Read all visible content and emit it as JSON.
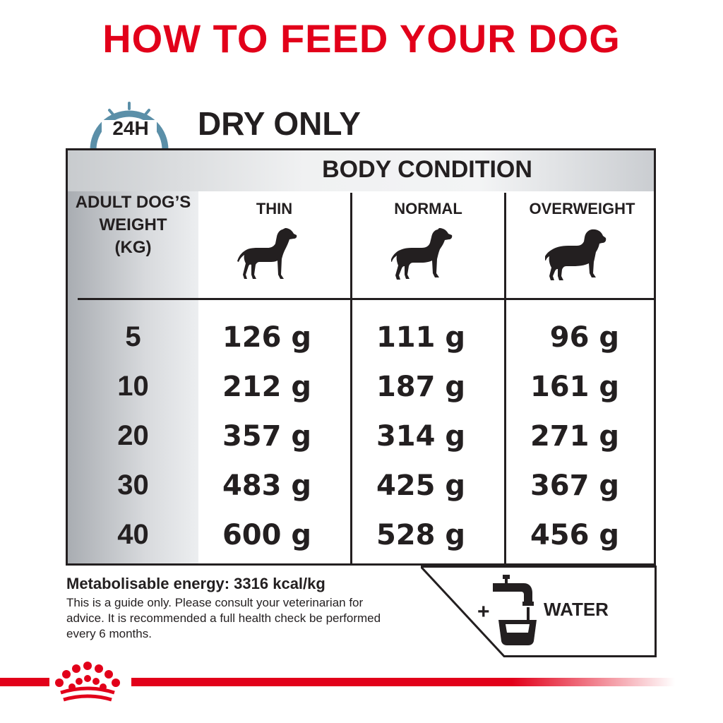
{
  "header": {
    "title": "HOW TO FEED YOUR DOG"
  },
  "section": {
    "clock_label": "24H",
    "subtitle": "DRY ONLY"
  },
  "table": {
    "body_condition_label": "BODY CONDITION",
    "weight_header": [
      "ADULT DOG’S",
      "WEIGHT",
      "(KG)"
    ],
    "columns": [
      "THIN",
      "NORMAL",
      "OVERWEIGHT"
    ],
    "rows": [
      {
        "weight": "5",
        "values": [
          "126 g",
          "111 g",
          "96 g"
        ]
      },
      {
        "weight": "10",
        "values": [
          "212 g",
          "187 g",
          "161 g"
        ]
      },
      {
        "weight": "20",
        "values": [
          "357 g",
          "314 g",
          "271 g"
        ]
      },
      {
        "weight": "30",
        "values": [
          "483 g",
          "425 g",
          "367 g"
        ]
      },
      {
        "weight": "40",
        "values": [
          "600 g",
          "528 g",
          "456 g"
        ]
      }
    ],
    "icons": [
      "dog-thin-icon",
      "dog-normal-icon",
      "dog-overweight-icon"
    ]
  },
  "footer": {
    "energy": "Metabolisable energy: 3316 kcal/kg",
    "note_lines": [
      "This is a guide only. Please consult your veterinarian for",
      "advice. It is recommended a full health check be performed",
      "every 6 months."
    ],
    "plus": "+",
    "water_label": "WATER",
    "water_icon": "tap-bowl-icon",
    "logo_icon": "crown-logo-icon"
  },
  "colors": {
    "brand_red": "#e2001a",
    "clock_blue": "#5b8fa8",
    "text": "#231f20"
  }
}
